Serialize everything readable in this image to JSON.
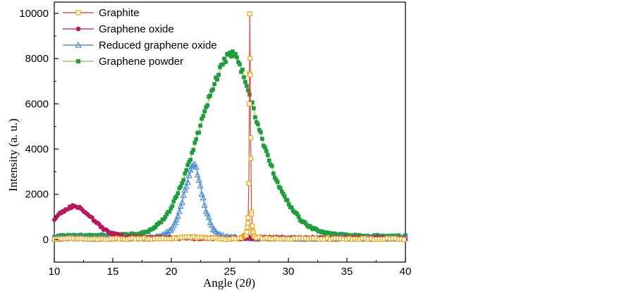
{
  "chart_data": {
    "type": "line",
    "title": "",
    "xlabel_prefix": "Angle (2",
    "xlabel_theta": "θ",
    "xlabel_suffix": ")",
    "ylabel": "Intensity (a. u.)",
    "xlim": [
      10,
      40
    ],
    "ylim": [
      -1000,
      10500
    ],
    "xticks": [
      10,
      15,
      20,
      25,
      30,
      35,
      40
    ],
    "yticks": [
      0,
      2000,
      4000,
      6000,
      8000,
      10000
    ],
    "grid": false,
    "legend_position": "top-left",
    "series": [
      {
        "name": "Graphite",
        "color": "#e8332a",
        "marker_color": "#f2a30f",
        "marker": "open-square",
        "x": [
          10,
          12,
          14,
          16,
          18,
          20,
          20.8,
          21.2,
          21.8,
          22.4,
          23,
          24,
          25,
          26,
          26.4,
          26.55,
          26.62,
          26.67,
          26.7,
          26.73,
          26.78,
          26.85,
          26.95,
          27.1,
          28,
          30,
          32,
          34,
          36,
          38,
          40
        ],
        "y": [
          30,
          30,
          30,
          30,
          40,
          50,
          80,
          100,
          110,
          90,
          60,
          40,
          40,
          60,
          200,
          700,
          2500,
          6000,
          10000,
          8000,
          4500,
          1200,
          350,
          100,
          50,
          40,
          35,
          30,
          30,
          30,
          30
        ]
      },
      {
        "name": "Graphene oxide",
        "color": "#b8195e",
        "marker_color": "#b8195e",
        "marker": "circle",
        "x": [
          10,
          10.5,
          11,
          11.5,
          12,
          12.5,
          13,
          13.5,
          14,
          14.5,
          15,
          16,
          18,
          20,
          25,
          30,
          35,
          40
        ],
        "y": [
          900,
          1150,
          1350,
          1450,
          1420,
          1300,
          1050,
          800,
          550,
          380,
          250,
          120,
          70,
          60,
          60,
          60,
          60,
          60
        ]
      },
      {
        "name": "Reduced graphene oxide",
        "color": "#3b6fd0",
        "marker_color": "#4d8fd6",
        "marker": "triangle",
        "x": [
          10,
          14,
          18,
          19,
          20,
          20.5,
          21,
          21.5,
          21.8,
          22,
          22.2,
          22.5,
          23,
          23.5,
          24,
          25,
          27,
          30,
          35,
          40
        ],
        "y": [
          50,
          50,
          60,
          120,
          400,
          900,
          1800,
          2800,
          3200,
          3300,
          3000,
          2300,
          1200,
          500,
          200,
          80,
          60,
          50,
          50,
          50
        ]
      },
      {
        "name": "Graphene powder",
        "color": "#7dc242",
        "marker_color": "#1e9e3a",
        "marker": "square",
        "x": [
          10,
          14,
          17,
          18,
          19,
          20,
          21,
          22,
          23,
          24,
          24.5,
          25,
          25.5,
          26,
          27,
          28,
          29,
          30,
          31,
          32,
          33,
          34,
          35,
          37,
          40
        ],
        "y": [
          150,
          180,
          250,
          350,
          700,
          1400,
          2600,
          4200,
          5900,
          7300,
          7900,
          8200,
          8100,
          7500,
          5800,
          4000,
          2600,
          1600,
          900,
          500,
          300,
          220,
          180,
          150,
          150
        ]
      }
    ]
  }
}
